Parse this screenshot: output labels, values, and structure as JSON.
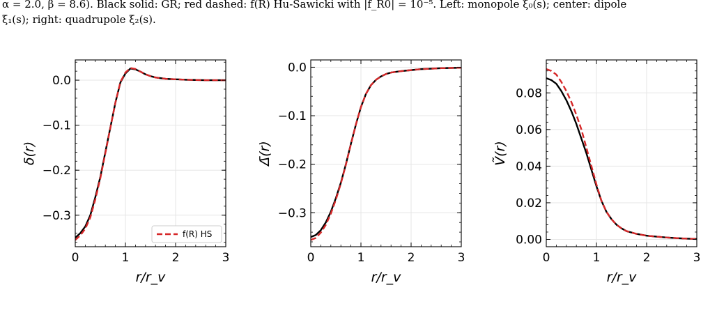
{
  "caption": {
    "line1": "α = 2.0, β = 8.6). Black solid: GR; red dashed: f(R) Hu-Sawicki with |f_R0| = 10⁻⁵. Left: monopole ξ₀(s); center: dipole",
    "line2": "ξ₁(s); right: quadrupole ξ₂(s)."
  },
  "colors": {
    "gr": "#000000",
    "hs": "#d62728",
    "grid": "#e6e6e6"
  },
  "chart_data": [
    {
      "type": "line",
      "ylabel": "δ(r)",
      "xlabel": "r/r_v",
      "xlim": [
        0,
        3
      ],
      "ylim": [
        -0.37,
        0.045
      ],
      "xticks": [
        0,
        1,
        2,
        3
      ],
      "xtick_labels": [
        "0",
        "1",
        "2",
        "3"
      ],
      "yticks": [
        -0.3,
        -0.2,
        -0.1,
        0.0
      ],
      "ytick_labels": [
        "−0.3",
        "−0.2",
        "−0.1",
        "0.0"
      ],
      "grid": true,
      "legend": {
        "position": "bottom-right",
        "entries": [
          "f(R) HS"
        ]
      },
      "series": [
        {
          "style": "solid",
          "color": "#000000",
          "x": [
            0,
            0.1,
            0.2,
            0.3,
            0.4,
            0.5,
            0.6,
            0.7,
            0.8,
            0.9,
            1.0,
            1.1,
            1.2,
            1.3,
            1.4,
            1.5,
            1.6,
            1.8,
            2.0,
            2.2,
            2.4,
            2.6,
            2.8,
            3.0
          ],
          "y": [
            -0.35,
            -0.34,
            -0.325,
            -0.3,
            -0.26,
            -0.215,
            -0.16,
            -0.105,
            -0.05,
            -0.005,
            0.015,
            0.026,
            0.024,
            0.019,
            0.013,
            0.009,
            0.006,
            0.003,
            0.002,
            0.001,
            0.0005,
            0.0,
            0.0,
            0.0
          ]
        },
        {
          "name": "f(R) HS",
          "style": "dashed",
          "color": "#d62728",
          "x": [
            0,
            0.1,
            0.2,
            0.3,
            0.4,
            0.5,
            0.6,
            0.7,
            0.8,
            0.9,
            1.0,
            1.1,
            1.2,
            1.3,
            1.4,
            1.5,
            1.6,
            1.8,
            2.0,
            2.2,
            2.4,
            2.6,
            2.8,
            3.0
          ],
          "y": [
            -0.355,
            -0.345,
            -0.33,
            -0.305,
            -0.265,
            -0.218,
            -0.162,
            -0.106,
            -0.05,
            -0.004,
            0.017,
            0.027,
            0.025,
            0.019,
            0.013,
            0.009,
            0.006,
            0.003,
            0.002,
            0.001,
            0.0005,
            0.0,
            0.0,
            0.0
          ]
        }
      ]
    },
    {
      "type": "line",
      "ylabel": "Δ̄(r)",
      "xlabel": "r/r_v",
      "xlim": [
        0,
        3
      ],
      "ylim": [
        -0.37,
        0.015
      ],
      "xticks": [
        0,
        1,
        2,
        3
      ],
      "xtick_labels": [
        "0",
        "1",
        "2",
        "3"
      ],
      "yticks": [
        -0.3,
        -0.2,
        -0.1,
        0.0
      ],
      "ytick_labels": [
        "−0.3",
        "−0.2",
        "−0.1",
        "0.0"
      ],
      "grid": true,
      "series": [
        {
          "style": "solid",
          "color": "#000000",
          "x": [
            0,
            0.1,
            0.2,
            0.3,
            0.4,
            0.5,
            0.6,
            0.7,
            0.8,
            0.9,
            1.0,
            1.1,
            1.2,
            1.3,
            1.4,
            1.5,
            1.6,
            1.8,
            2.0,
            2.2,
            2.4,
            2.6,
            2.8,
            3.0
          ],
          "y": [
            -0.35,
            -0.346,
            -0.336,
            -0.32,
            -0.298,
            -0.27,
            -0.238,
            -0.2,
            -0.158,
            -0.118,
            -0.082,
            -0.055,
            -0.037,
            -0.026,
            -0.019,
            -0.014,
            -0.011,
            -0.008,
            -0.006,
            -0.004,
            -0.003,
            -0.002,
            -0.0015,
            -0.001
          ]
        },
        {
          "name": "f(R) HS",
          "style": "dashed",
          "color": "#d62728",
          "x": [
            0,
            0.1,
            0.2,
            0.3,
            0.4,
            0.5,
            0.6,
            0.7,
            0.8,
            0.9,
            1.0,
            1.1,
            1.2,
            1.3,
            1.4,
            1.5,
            1.6,
            1.8,
            2.0,
            2.2,
            2.4,
            2.6,
            2.8,
            3.0
          ],
          "y": [
            -0.356,
            -0.352,
            -0.341,
            -0.325,
            -0.302,
            -0.273,
            -0.24,
            -0.201,
            -0.159,
            -0.118,
            -0.082,
            -0.055,
            -0.037,
            -0.026,
            -0.019,
            -0.014,
            -0.011,
            -0.008,
            -0.006,
            -0.004,
            -0.003,
            -0.002,
            -0.0015,
            -0.001
          ]
        }
      ]
    },
    {
      "type": "line",
      "ylabel": "Ṽ(r)",
      "xlabel": "r/r_v",
      "xlim": [
        0,
        3
      ],
      "ylim": [
        -0.004,
        0.098
      ],
      "xticks": [
        0,
        1,
        2,
        3
      ],
      "xtick_labels": [
        "0",
        "1",
        "2",
        "3"
      ],
      "yticks": [
        0.0,
        0.02,
        0.04,
        0.06,
        0.08
      ],
      "ytick_labels": [
        "0.00",
        "0.02",
        "0.04",
        "0.06",
        "0.08"
      ],
      "grid": true,
      "series": [
        {
          "style": "solid",
          "color": "#000000",
          "x": [
            0,
            0.1,
            0.2,
            0.3,
            0.4,
            0.5,
            0.6,
            0.7,
            0.8,
            0.9,
            1.0,
            1.1,
            1.2,
            1.3,
            1.4,
            1.5,
            1.6,
            1.8,
            2.0,
            2.2,
            2.4,
            2.6,
            2.8,
            3.0
          ],
          "y": [
            0.088,
            0.087,
            0.085,
            0.081,
            0.076,
            0.07,
            0.063,
            0.055,
            0.047,
            0.038,
            0.029,
            0.021,
            0.015,
            0.011,
            0.008,
            0.006,
            0.0045,
            0.003,
            0.002,
            0.0015,
            0.001,
            0.0007,
            0.0004,
            0.0002
          ]
        },
        {
          "name": "f(R) HS",
          "style": "dashed",
          "color": "#d62728",
          "x": [
            0,
            0.1,
            0.2,
            0.3,
            0.4,
            0.5,
            0.6,
            0.7,
            0.8,
            0.9,
            1.0,
            1.1,
            1.2,
            1.3,
            1.4,
            1.5,
            1.6,
            1.8,
            2.0,
            2.2,
            2.4,
            2.6,
            2.8,
            3.0
          ],
          "y": [
            0.093,
            0.092,
            0.09,
            0.086,
            0.081,
            0.075,
            0.068,
            0.06,
            0.05,
            0.04,
            0.03,
            0.021,
            0.015,
            0.011,
            0.008,
            0.006,
            0.0045,
            0.003,
            0.002,
            0.0015,
            0.001,
            0.0007,
            0.0004,
            0.0002
          ]
        }
      ]
    }
  ]
}
